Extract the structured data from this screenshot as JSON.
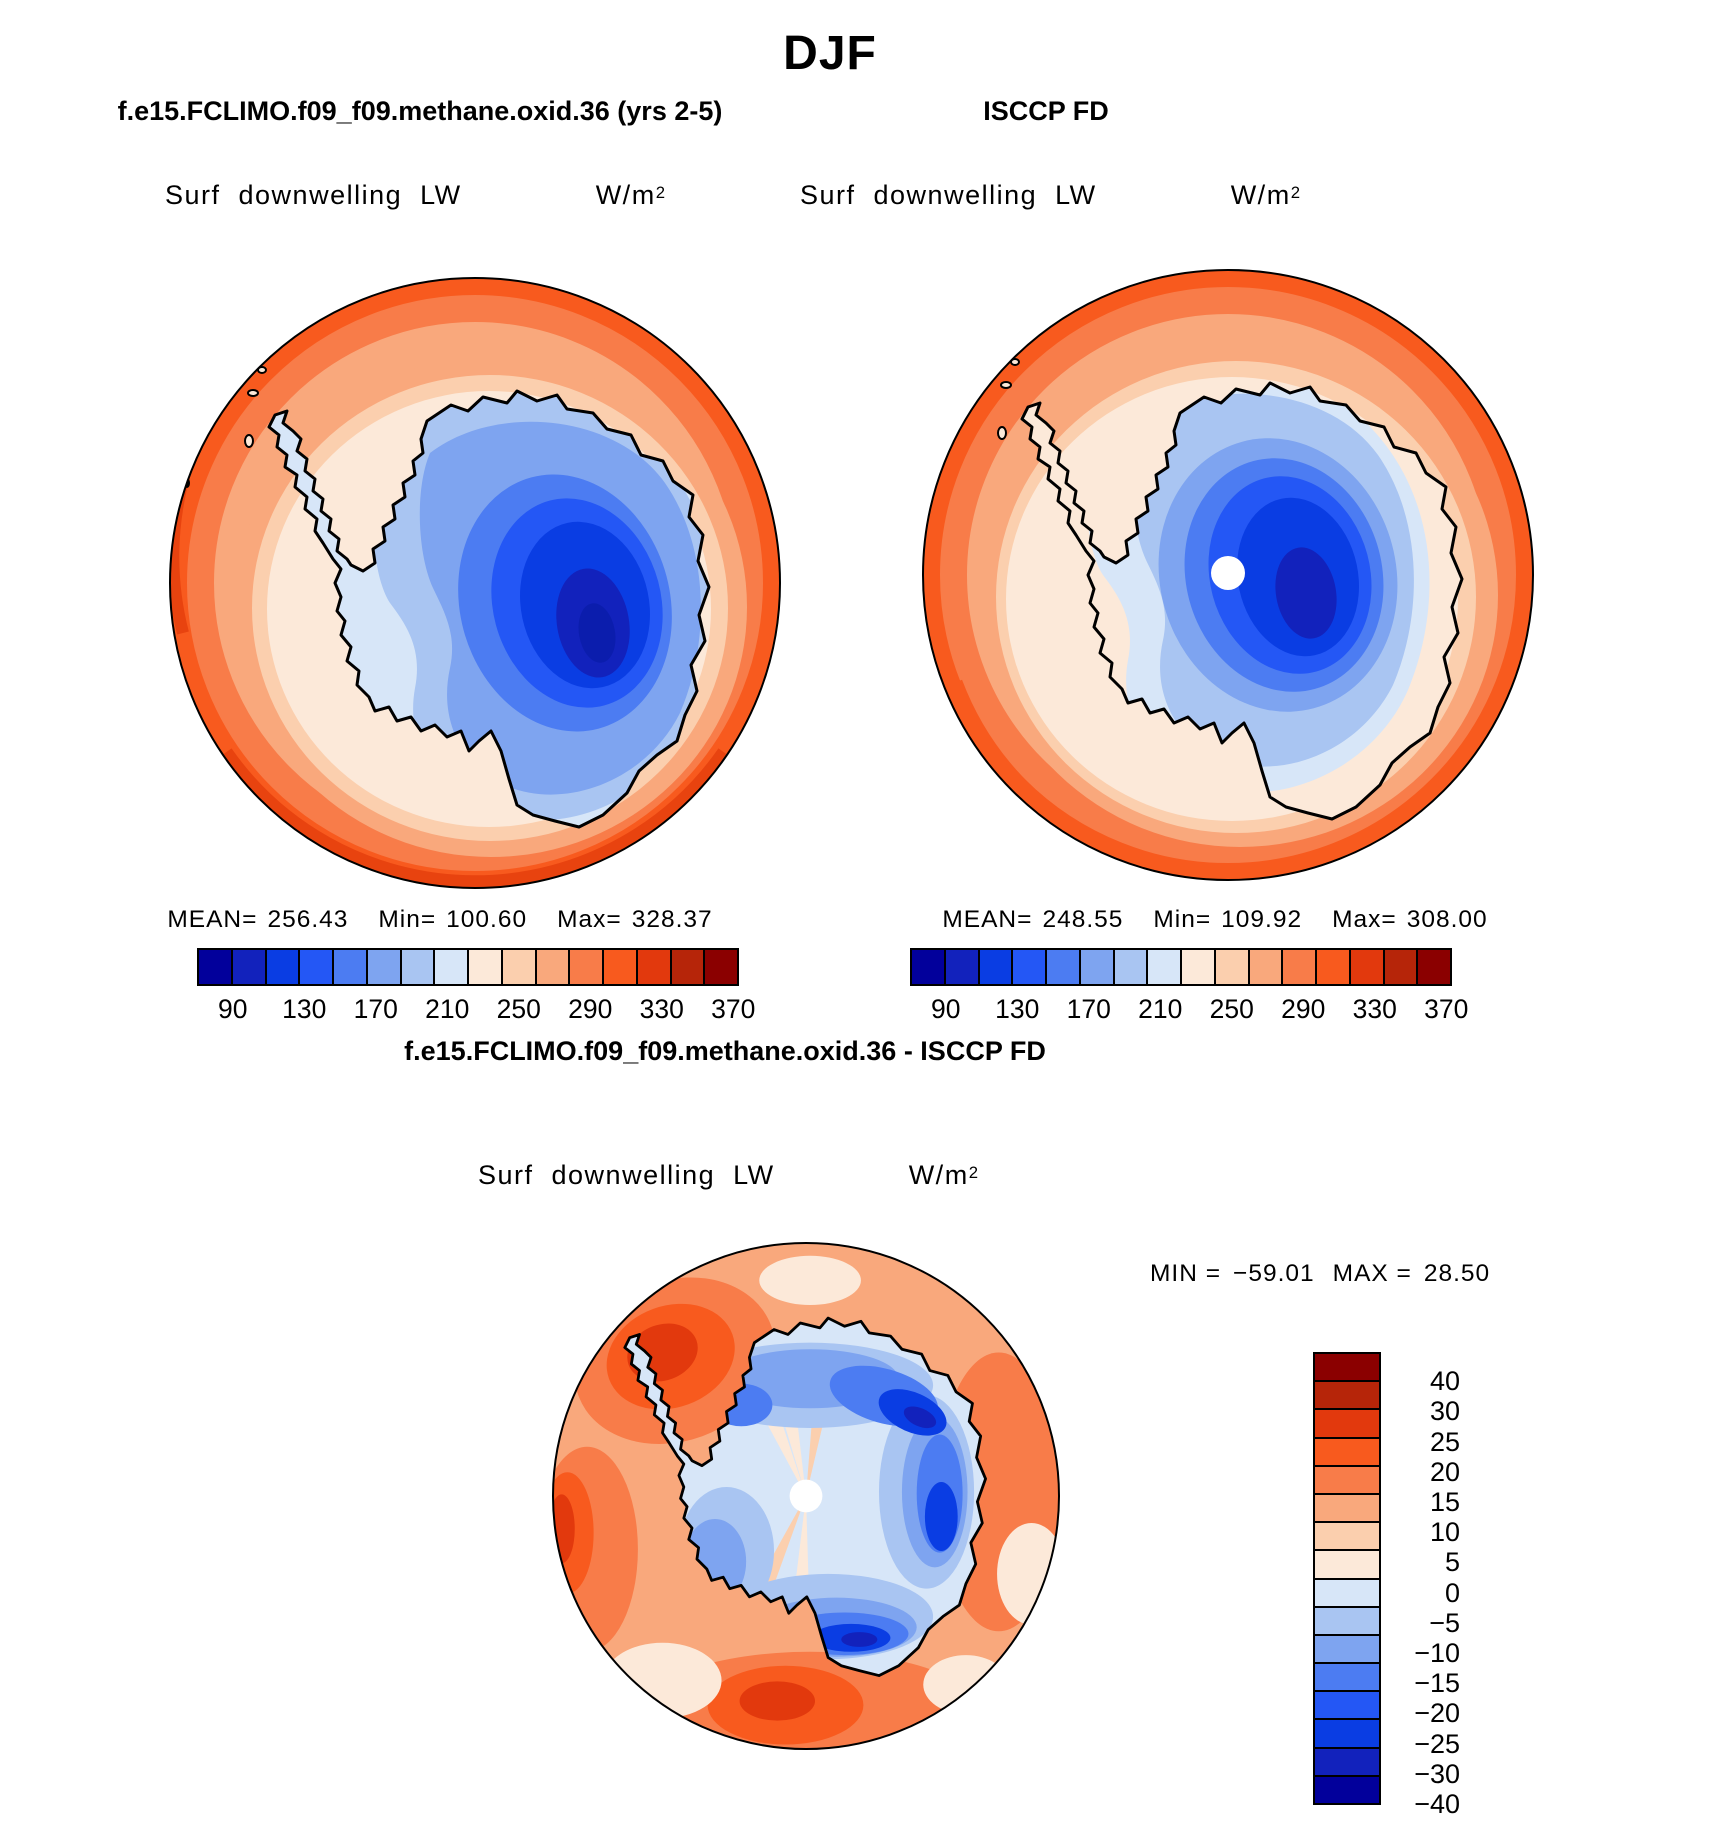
{
  "title": "DJF",
  "model_panel": {
    "subtitle": "f.e15.FCLIMO.f09_f09.methane.oxid.36 (yrs 2-5)",
    "field": "Surf downwelling LW",
    "units_base": "W/m",
    "units_exp": "2",
    "mean_label": "MEAN=",
    "mean_value": "256.43",
    "min_label": "Min=",
    "min_value": "100.60",
    "max_label": "Max=",
    "max_value": "328.37"
  },
  "obs_panel": {
    "subtitle": "ISCCP FD",
    "field": "Surf downwelling LW",
    "units_base": "W/m",
    "units_exp": "2",
    "mean_label": "MEAN=",
    "mean_value": "248.55",
    "min_label": "Min=",
    "min_value": "109.92",
    "max_label": "Max=",
    "max_value": "308.00"
  },
  "diff_panel": {
    "subtitle": "f.e15.FCLIMO.f09_f09.methane.oxid.36 - ISCCP FD",
    "field": "Surf downwelling LW",
    "units_base": "W/m",
    "units_exp": "2",
    "min_label": "MIN =",
    "min_value": "−59.01",
    "max_label": "MAX =",
    "max_value": "28.50"
  },
  "colorbar": {
    "colors_blue_to_red": [
      "#02009B",
      "#1222BC",
      "#0A3DE3",
      "#2457F5",
      "#4C7CF2",
      "#7EA4F0",
      "#A9C5F2",
      "#D7E6F8",
      "#FCE9D9",
      "#FBCFAE",
      "#F9A87C",
      "#F87C49",
      "#F85A1E",
      "#E2390D",
      "#B62509",
      "#8B0000"
    ],
    "tick_labels": [
      "90",
      "130",
      "170",
      "210",
      "250",
      "290",
      "330",
      "370"
    ]
  },
  "diff_colorbar": {
    "tick_labels_top_to_bottom": [
      "40",
      "30",
      "25",
      "20",
      "15",
      "10",
      "5",
      "0",
      "−5",
      "−10",
      "−15",
      "−20",
      "−25",
      "−30",
      "−40"
    ]
  },
  "chart_data": {
    "type": "heatmap",
    "subtype": "polar_stereographic_contour_maps",
    "season": "DJF",
    "region": "Antarctica / South Pole",
    "variable": "Surf downwelling LW",
    "units": "W/m^2",
    "panels": [
      {
        "name": "model",
        "title": "f.e15.FCLIMO.f09_f09.methane.oxid.36 (yrs 2-5)",
        "stats": {
          "mean": 256.43,
          "min": 100.6,
          "max": 328.37
        },
        "contour_levels": [
          90,
          110,
          130,
          150,
          170,
          190,
          210,
          230,
          250,
          270,
          290,
          310,
          330,
          350,
          370
        ],
        "labeled_levels": [
          90,
          130,
          170,
          210,
          250,
          290,
          330,
          370
        ],
        "colorbar": "horizontal below map"
      },
      {
        "name": "observations",
        "title": "ISCCP FD",
        "stats": {
          "mean": 248.55,
          "min": 109.92,
          "max": 308.0
        },
        "contour_levels": [
          90,
          110,
          130,
          150,
          170,
          190,
          210,
          230,
          250,
          270,
          290,
          310,
          330,
          350,
          370
        ],
        "labeled_levels": [
          90,
          130,
          170,
          210,
          250,
          290,
          330,
          370
        ],
        "colorbar": "horizontal below map",
        "notes": "white circle of missing data at the pole"
      },
      {
        "name": "difference",
        "title": "f.e15.FCLIMO.f09_f09.methane.oxid.36 - ISCCP FD",
        "stats": {
          "min": -59.01,
          "max": 28.5
        },
        "contour_levels": [
          -40,
          -30,
          -25,
          -20,
          -15,
          -10,
          -5,
          0,
          5,
          10,
          15,
          20,
          25,
          30,
          40
        ],
        "colorbar": "vertical right of map",
        "notes": "white circle of missing data at the pole"
      }
    ],
    "palette_blue_to_red": [
      "#02009B",
      "#1222BC",
      "#0A3DE3",
      "#2457F5",
      "#4C7CF2",
      "#7EA4F0",
      "#A9C5F2",
      "#D7E6F8",
      "#FCE9D9",
      "#FBCFAE",
      "#F9A87C",
      "#F87C49",
      "#F85A1E",
      "#E2390D",
      "#B62509",
      "#8B0000"
    ],
    "map_appearance": "oceans shaded orange/salmon rings (高 values), Antarctic interior shaded blue (low values), black coastline"
  }
}
